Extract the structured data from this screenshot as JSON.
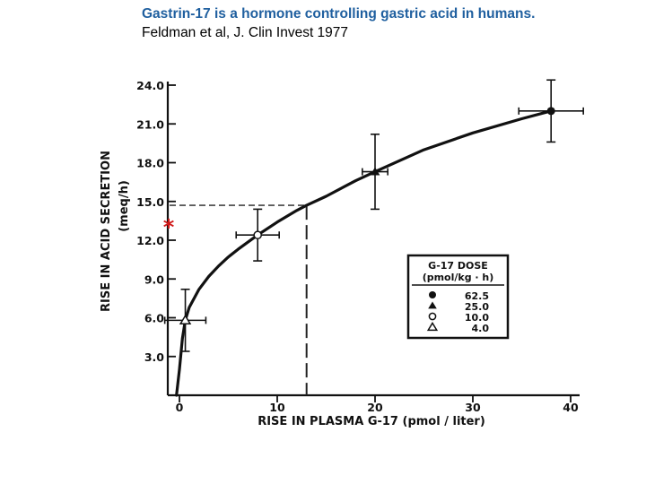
{
  "slide": {
    "title": "Gastrin-17 is a hormone controlling gastric acid in humans.",
    "citation": "Feldman et al, J. Clin Invest 1977"
  },
  "chart_data": {
    "type": "scatter",
    "xlabel": "RISE IN PLASMA G-17 (pmol / liter)",
    "ylabel": "RISE IN ACID SECRETION",
    "ylabel_unit": "(meq/h)",
    "xlim": [
      0,
      40
    ],
    "ylim": [
      0,
      24
    ],
    "x_ticks": [
      "0",
      "10",
      "20",
      "30",
      "40"
    ],
    "y_ticks": [
      "3.0",
      "6.0",
      "9.0",
      "12.0",
      "15.0",
      "18.0",
      "21.0",
      "24.0"
    ],
    "grid": false,
    "legend": {
      "title_line1": "G-17 DOSE",
      "title_line2": "(pmol/kg · h)",
      "placement": "lower-right",
      "entries": [
        {
          "marker": "filled-circle",
          "label": "62.5"
        },
        {
          "marker": "filled-triangle",
          "label": "25.0"
        },
        {
          "marker": "open-circle",
          "label": "10.0"
        },
        {
          "marker": "open-triangle",
          "label": "4.0"
        }
      ]
    },
    "points": [
      {
        "dose": "4.0",
        "marker": "open-triangle",
        "x": 0.6,
        "y": 5.8,
        "x_err": 2.1,
        "y_err": 2.4
      },
      {
        "dose": "10.0",
        "marker": "open-circle",
        "x": 8.0,
        "y": 12.4,
        "x_err": 2.2,
        "y_err": 2.0
      },
      {
        "dose": "25.0",
        "marker": "filled-triangle",
        "x": 20.0,
        "y": 17.3,
        "x_err": 1.3,
        "y_err": 2.9
      },
      {
        "dose": "62.5",
        "marker": "filled-circle",
        "x": 38.0,
        "y": 22.0,
        "x_err": 3.3,
        "y_err": 2.4
      }
    ],
    "fit_curve": [
      [
        -0.3,
        0
      ],
      [
        0,
        2.0
      ],
      [
        0.3,
        4.4
      ],
      [
        0.6,
        5.8
      ],
      [
        1,
        6.8
      ],
      [
        2,
        8.2
      ],
      [
        3,
        9.2
      ],
      [
        4,
        10.0
      ],
      [
        5,
        10.7
      ],
      [
        6,
        11.3
      ],
      [
        8,
        12.4
      ],
      [
        10,
        13.4
      ],
      [
        12,
        14.3
      ],
      [
        13,
        14.7
      ],
      [
        15,
        15.4
      ],
      [
        18,
        16.6
      ],
      [
        20,
        17.3
      ],
      [
        25,
        19.0
      ],
      [
        30,
        20.3
      ],
      [
        35,
        21.4
      ],
      [
        38,
        22.0
      ]
    ],
    "reference_lines": {
      "x": 13,
      "y": 14.7
    },
    "annotation": {
      "text": "*",
      "color": "#d01818",
      "y": 13.2
    }
  }
}
